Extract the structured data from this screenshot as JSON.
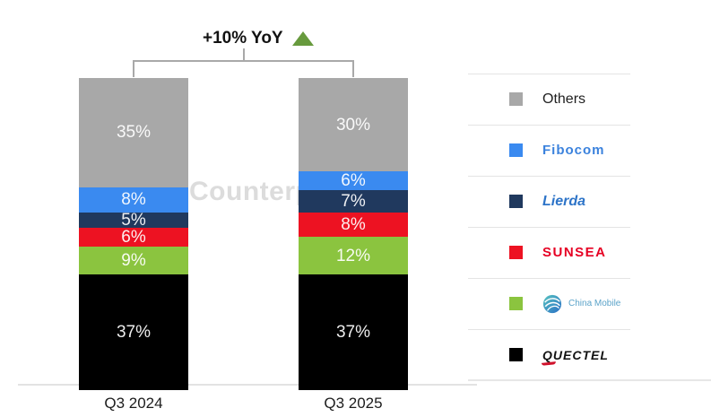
{
  "annotation": {
    "label": "+10% YoY"
  },
  "watermark": "Counterpoint",
  "chart_data": {
    "type": "bar",
    "variant": "stacked-100-percent-share",
    "title": "",
    "categories": [
      "Q3 2024",
      "Q3 2025"
    ],
    "series": [
      {
        "name": "Others",
        "color": "#a8a8a8",
        "values": [
          35,
          30
        ]
      },
      {
        "name": "Fibocom",
        "color": "#3a8af0",
        "values": [
          8,
          6
        ]
      },
      {
        "name": "Lierda",
        "color": "#20395e",
        "values": [
          5,
          7
        ]
      },
      {
        "name": "Sunsea",
        "color": "#ed1222",
        "values": [
          6,
          8
        ]
      },
      {
        "name": "China Mobile",
        "color": "#8bc43f",
        "values": [
          9,
          12
        ]
      },
      {
        "name": "Quectel",
        "color": "#000000",
        "values": [
          37,
          37
        ]
      }
    ],
    "unit": "%",
    "value_labels": true,
    "annotations": [
      "+10% YoY"
    ],
    "legend_position": "right",
    "ylim": [
      0,
      100
    ],
    "grid": false
  },
  "legend": {
    "items": [
      {
        "label": "Others",
        "color": "#a8a8a8"
      },
      {
        "label": "Fibocom",
        "color": "#3a8af0"
      },
      {
        "label": "Lierda",
        "color": "#20395e"
      },
      {
        "label": "SUNSEA",
        "color": "#ed1222"
      },
      {
        "label": "China Mobile",
        "color": "#8bc43f"
      },
      {
        "label": "QUECTEL",
        "color": "#000000"
      }
    ]
  }
}
